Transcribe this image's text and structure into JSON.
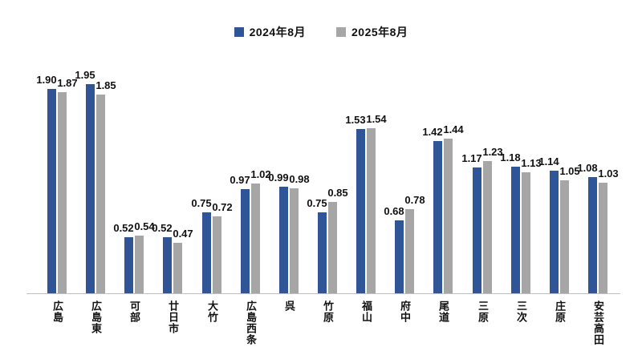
{
  "legend": [
    {
      "label": "2024年8月",
      "color": "#2F5597"
    },
    {
      "label": "2025年8月",
      "color": "#A6A6A6"
    }
  ],
  "chart_data": {
    "type": "bar",
    "title": "",
    "xlabel": "",
    "ylabel": "",
    "categories": [
      "広島",
      "広島東",
      "可部",
      "廿日市",
      "大竹",
      "広島西条",
      "呉",
      "竹原",
      "福山",
      "府中",
      "尾道",
      "三原",
      "三次",
      "庄原",
      "安芸高田"
    ],
    "series": [
      {
        "name": "2024年8月",
        "color": "#2F5597",
        "values": [
          1.9,
          1.95,
          0.52,
          0.52,
          0.75,
          0.97,
          0.99,
          0.75,
          1.53,
          0.68,
          1.42,
          1.17,
          1.18,
          1.14,
          1.08
        ]
      },
      {
        "name": "2025年8月",
        "color": "#A6A6A6",
        "values": [
          1.87,
          1.85,
          0.54,
          0.47,
          0.72,
          1.02,
          0.98,
          0.85,
          1.54,
          0.78,
          1.44,
          1.23,
          1.13,
          1.05,
          1.03
        ]
      }
    ],
    "ylim": [
      0,
      2.0
    ],
    "grid": false,
    "legend_position": "top",
    "value_labels": true,
    "value_label_decimals": 2
  },
  "colors": {
    "background": "#FFFFFF",
    "axis_line": "#BFBFBF",
    "text": "#111111"
  }
}
